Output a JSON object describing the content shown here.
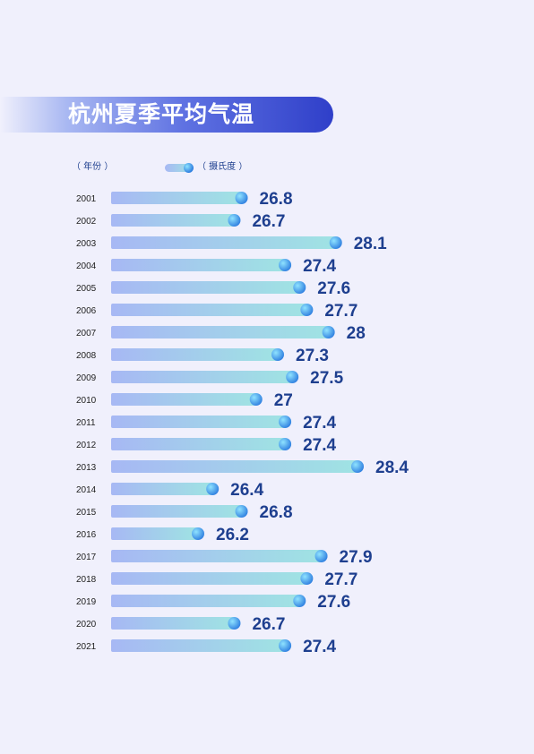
{
  "title": "杭州夏季平均气温",
  "legend": {
    "year_label": "（ 年份 ）",
    "unit_label": "（ 摄氏度 ）"
  },
  "colors": {
    "bar_start": "#a7b8f4",
    "bar_end": "#9fe3e3",
    "dot": "#2f7fe0",
    "value_text": "#1e3f8f",
    "title_bg": "#2f3fc9"
  },
  "chart_data": {
    "type": "bar",
    "orientation": "horizontal",
    "categories": [
      "2001",
      "2002",
      "2003",
      "2004",
      "2005",
      "2006",
      "2007",
      "2008",
      "2009",
      "2010",
      "2011",
      "2012",
      "2013",
      "2014",
      "2015",
      "2016",
      "2017",
      "2018",
      "2019",
      "2020",
      "2021"
    ],
    "value_labels": [
      "26.8",
      "26.7",
      "28.1",
      "27.4",
      "27.6",
      "27.7",
      "28",
      "27.3",
      "27.5",
      "27",
      "27.4",
      "27.4",
      "28.4",
      "26.4",
      "26.8",
      "26.2",
      "27.9",
      "27.7",
      "27.6",
      "26.7",
      "27.4"
    ],
    "values": [
      26.8,
      26.7,
      28.1,
      27.4,
      27.6,
      27.7,
      28,
      27.3,
      27.5,
      27,
      27.4,
      27.4,
      28.4,
      26.4,
      26.8,
      26.2,
      27.9,
      27.7,
      27.6,
      26.7,
      27.4
    ],
    "title": "杭州夏季平均气温",
    "xlabel": "（ 摄氏度 ）",
    "ylabel": "（ 年份 ）",
    "grid": false,
    "legend_position": "top-left"
  }
}
